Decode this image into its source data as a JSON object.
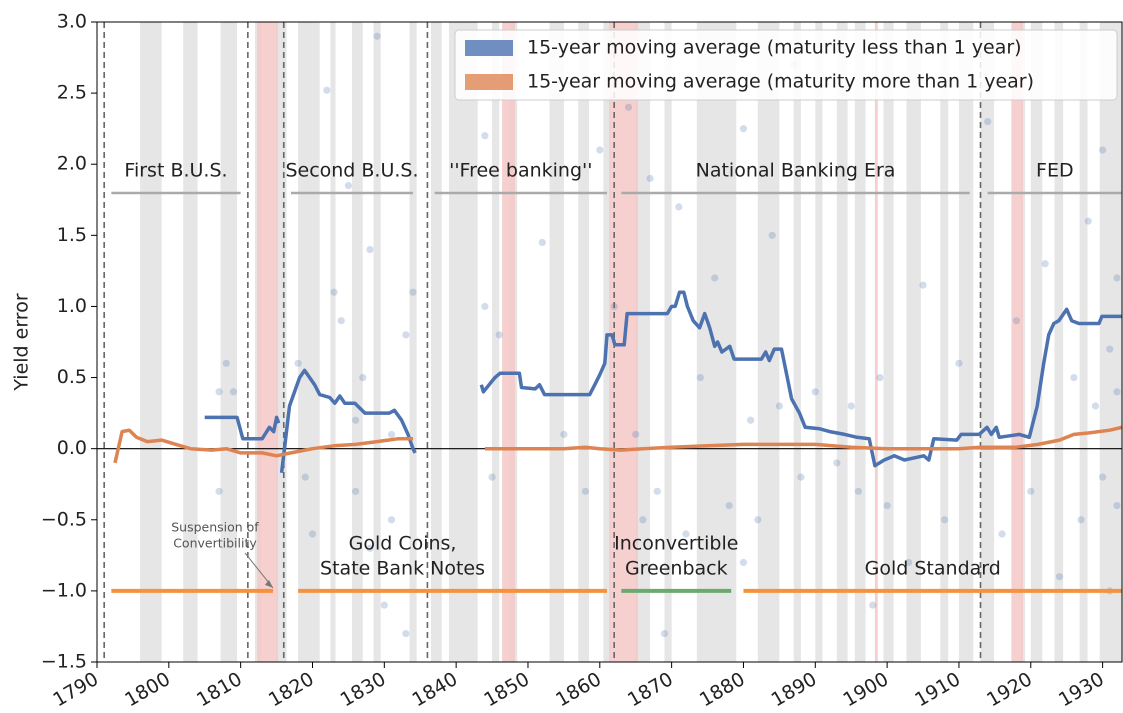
{
  "chart_data": {
    "type": "line",
    "y_label": "Yield error",
    "xlim": [
      1790,
      1932.7
    ],
    "ylim": [
      -1.5,
      3.0
    ],
    "xticks": [
      1790,
      1800,
      1810,
      1820,
      1830,
      1840,
      1850,
      1860,
      1870,
      1880,
      1890,
      1900,
      1910,
      1920,
      1930
    ],
    "yticks": [
      {
        "value": -1.5,
        "label": "−1.5"
      },
      {
        "value": -1.0,
        "label": "−1.0"
      },
      {
        "value": -0.5,
        "label": "−0.5"
      },
      {
        "value": 0,
        "label": "0.0"
      },
      {
        "value": 0.5,
        "label": "0.5"
      },
      {
        "value": 1.0,
        "label": "1.0"
      },
      {
        "value": 1.5,
        "label": "1.5"
      },
      {
        "value": 2.0,
        "label": "2.0"
      },
      {
        "value": 2.5,
        "label": "2.5"
      },
      {
        "value": 3.0,
        "label": "3.0"
      }
    ],
    "legend": "upper right",
    "series": [
      {
        "name": "15-year moving average (maturity less than 1 year)",
        "color": "#4c72b0",
        "x": [
          1805,
          1809.5,
          1810.3,
          1813,
          1814,
          1814.6,
          1815,
          1815.3,
          1815.5,
          1815.7,
          1816.8,
          1818.2,
          1818.9,
          1820.3,
          1821,
          1822.4,
          1823.1,
          1823.8,
          1824.5,
          1825.9,
          1827.3,
          1830.7,
          1831.4,
          1832.4,
          1833.3,
          1834,
          1834.3,
          1839,
          1843.5,
          1843.8,
          1845.4,
          1846.1,
          1848.8,
          1849.1,
          1851,
          1851.6,
          1852.3,
          1858.6,
          1859.3,
          1860,
          1860.7,
          1861,
          1861.7,
          1862.1,
          1863.4,
          1863.8,
          1869.4,
          1870,
          1870.5,
          1871.1,
          1871.7,
          1872.2,
          1873,
          1873.9,
          1874.6,
          1875.3,
          1876,
          1876.4,
          1877,
          1878.1,
          1878.7,
          1882.5,
          1883.1,
          1883.6,
          1884.3,
          1885.3,
          1886.1,
          1886.7,
          1887.8,
          1888.6,
          1890.6,
          1892,
          1894.1,
          1895.8,
          1897.5,
          1898.3,
          1899.6,
          1901,
          1902.4,
          1905.1,
          1905.8,
          1906.5,
          1909.7,
          1910.3,
          1912.8,
          1913.9,
          1914.5,
          1915.2,
          1915.6,
          1918.4,
          1919.8,
          1920.9,
          1921.8,
          1922.5,
          1923.2,
          1923.9,
          1925,
          1925.7,
          1926.7,
          1929.5,
          1929.9,
          1932.7
        ],
        "values": [
          0.22,
          0.22,
          0.07,
          0.07,
          0.15,
          0.12,
          0.22,
          0.18,
          null,
          -0.17,
          0.3,
          0.5,
          0.55,
          0.45,
          0.38,
          0.36,
          0.32,
          0.37,
          0.32,
          0.32,
          0.25,
          0.25,
          0.27,
          0.2,
          0.1,
          0.0,
          -0.03,
          null,
          0.45,
          0.4,
          0.5,
          0.53,
          0.53,
          0.43,
          0.42,
          0.45,
          0.38,
          0.38,
          0.45,
          0.52,
          0.6,
          0.8,
          0.8,
          0.73,
          0.73,
          0.95,
          0.95,
          1.0,
          1.0,
          1.1,
          1.1,
          1.0,
          0.9,
          0.85,
          0.95,
          0.85,
          0.72,
          0.75,
          0.68,
          0.72,
          0.63,
          0.63,
          0.68,
          0.62,
          0.7,
          0.7,
          0.5,
          0.35,
          0.25,
          0.15,
          0.14,
          0.12,
          0.1,
          0.08,
          0.07,
          -0.12,
          -0.08,
          -0.05,
          -0.08,
          -0.05,
          -0.08,
          0.07,
          0.06,
          0.1,
          0.1,
          0.15,
          0.1,
          0.15,
          0.08,
          0.1,
          0.08,
          0.3,
          0.6,
          0.8,
          0.88,
          0.9,
          0.98,
          0.9,
          0.88,
          0.88,
          0.93,
          0.93
        ]
      },
      {
        "name": "15-year moving average (maturity more than 1 year)",
        "color": "#dd8452",
        "x": [
          1792.5,
          1793.5,
          1794.5,
          1795.5,
          1797,
          1799,
          1801,
          1803,
          1806,
          1808,
          1810,
          1813,
          1815,
          1817,
          1820,
          1823,
          1826,
          1829,
          1832,
          1834,
          1839,
          1844,
          1850,
          1855,
          1858,
          1860,
          1863,
          1866,
          1870,
          1875,
          1880,
          1885,
          1890,
          1895,
          1900,
          1905,
          1910,
          1913,
          1918,
          1921,
          1924,
          1926,
          1928,
          1931,
          1932.7
        ],
        "values": [
          -0.1,
          0.12,
          0.13,
          0.08,
          0.05,
          0.06,
          0.03,
          0,
          -0.01,
          0,
          -0.03,
          -0.03,
          -0.05,
          -0.03,
          0,
          0.02,
          0.03,
          0.05,
          0.07,
          0.07,
          null,
          0,
          0,
          0,
          0.01,
          0,
          -0.01,
          0,
          0.01,
          0.02,
          0.03,
          0.03,
          0.03,
          0.01,
          0,
          0,
          0,
          0.01,
          0.01,
          0.03,
          0.06,
          0.1,
          0.11,
          0.13,
          0.15
        ]
      }
    ],
    "scatter": {
      "color": "#4c72b0",
      "x": [
        1807,
        1807,
        1808,
        1809,
        1818,
        1819,
        1820,
        1822,
        1823,
        1824,
        1825,
        1826,
        1826,
        1827,
        1828,
        1828,
        1829,
        1830,
        1831,
        1831,
        1833,
        1833,
        1834,
        1844,
        1844,
        1845,
        1846,
        1852,
        1855,
        1858,
        1860,
        1862,
        1864,
        1865,
        1866,
        1867,
        1868,
        1869,
        1871,
        1872,
        1874,
        1876,
        1878,
        1880,
        1880,
        1881,
        1882,
        1884,
        1885,
        1887,
        1888,
        1890,
        1893,
        1895,
        1896,
        1898,
        1899,
        1900,
        1903,
        1905,
        1908,
        1910,
        1914,
        1916,
        1918,
        1920,
        1922,
        1924,
        1926,
        1927,
        1928,
        1929,
        1930,
        1930,
        1931,
        1931,
        1932,
        1932,
        1932
      ],
      "y": [
        0.4,
        -0.3,
        0.6,
        0.4,
        0.6,
        -0.2,
        -0.6,
        2.52,
        1.1,
        0.9,
        1.85,
        0.2,
        -0.3,
        0.5,
        -0.7,
        1.4,
        2.9,
        -1.1,
        0.1,
        -0.5,
        0.8,
        -1.3,
        1.1,
        1.0,
        2.2,
        -0.2,
        0.8,
        1.45,
        0.1,
        -0.3,
        2.1,
        1.0,
        2.4,
        0.1,
        -0.5,
        1.9,
        -0.3,
        -1.3,
        1.7,
        -0.6,
        0.5,
        1.2,
        -0.4,
        2.25,
        -0.8,
        0.2,
        -0.5,
        1.5,
        0.3,
        2.7,
        -0.2,
        0.4,
        -0.1,
        0.3,
        -0.3,
        -1.1,
        0.5,
        -0.4,
        -0.8,
        1.15,
        -0.5,
        0.6,
        2.3,
        -0.6,
        0.9,
        -0.3,
        1.3,
        -0.9,
        0.5,
        -0.5,
        1.6,
        0.3,
        -0.2,
        2.1,
        0.7,
        -1.0,
        0.4,
        -0.4,
        1.2
      ]
    },
    "recessions": [
      [
        1796,
        1799
      ],
      [
        1802,
        1804
      ],
      [
        1807.2,
        1809.5
      ],
      [
        1812,
        1812.8
      ],
      [
        1815,
        1816.4
      ],
      [
        1818,
        1821
      ],
      [
        1822.5,
        1823.2
      ],
      [
        1825.5,
        1827
      ],
      [
        1828.5,
        1829.5
      ],
      [
        1833.5,
        1834.5
      ],
      [
        1836.5,
        1838
      ],
      [
        1839,
        1843
      ],
      [
        1845,
        1846
      ],
      [
        1847.5,
        1848.5
      ],
      [
        1853,
        1855
      ],
      [
        1857,
        1858.5
      ],
      [
        1860.5,
        1861.5
      ],
      [
        1865,
        1867
      ],
      [
        1869,
        1870
      ],
      [
        1873.5,
        1879
      ],
      [
        1882,
        1885
      ],
      [
        1887,
        1888
      ],
      [
        1890,
        1891
      ],
      [
        1893,
        1894.5
      ],
      [
        1895.5,
        1897
      ],
      [
        1899.5,
        1900.9
      ],
      [
        1902.7,
        1904.7
      ],
      [
        1907.4,
        1908.5
      ],
      [
        1910,
        1912
      ],
      [
        1913,
        1914.9
      ],
      [
        1918.6,
        1919.2
      ],
      [
        1920,
        1921.6
      ],
      [
        1923.3,
        1924.5
      ],
      [
        1926.8,
        1927.9
      ],
      [
        1929.6,
        1932.7
      ]
    ],
    "crises": [
      [
        1812.3,
        1815.2
      ],
      [
        1846.4,
        1848.2
      ],
      [
        1861.3,
        1865.3
      ],
      [
        1898.3,
        1898.7
      ],
      [
        1917.3,
        1918.9
      ]
    ],
    "breaks": [
      1791,
      1811,
      1816,
      1836,
      1862,
      1913
    ],
    "eras": [
      {
        "label": "First B.U.S.",
        "span": [
          1792,
          1810
        ]
      },
      {
        "label": "Second B.U.S.",
        "span": [
          1817,
          1834
        ]
      },
      {
        "label": "''Free banking''",
        "span": [
          1837,
          1861
        ]
      },
      {
        "label": "National Banking Era",
        "span": [
          1863,
          1911.5
        ]
      },
      {
        "label": "FED",
        "span": [
          1914,
          1932.7
        ]
      }
    ],
    "regime_level": -1,
    "regimes": [
      {
        "lines": [],
        "color": "#f5923e",
        "span": [
          1792,
          1814.5
        ]
      },
      {
        "lines": [
          "Gold Coins,",
          "State Bank Notes"
        ],
        "color": "#f5923e",
        "span": [
          1818,
          1861
        ]
      },
      {
        "lines": [
          "Inconvertible",
          "Greenback"
        ],
        "color": "#6aaa6f",
        "span": [
          1863,
          1878.3
        ]
      },
      {
        "lines": [
          "Gold Standard"
        ],
        "color": "#f5923e",
        "span": [
          1880,
          1932.7
        ]
      }
    ],
    "annotation": {
      "lines": [
        "Suspension of",
        "Convertibility"
      ]
    }
  }
}
